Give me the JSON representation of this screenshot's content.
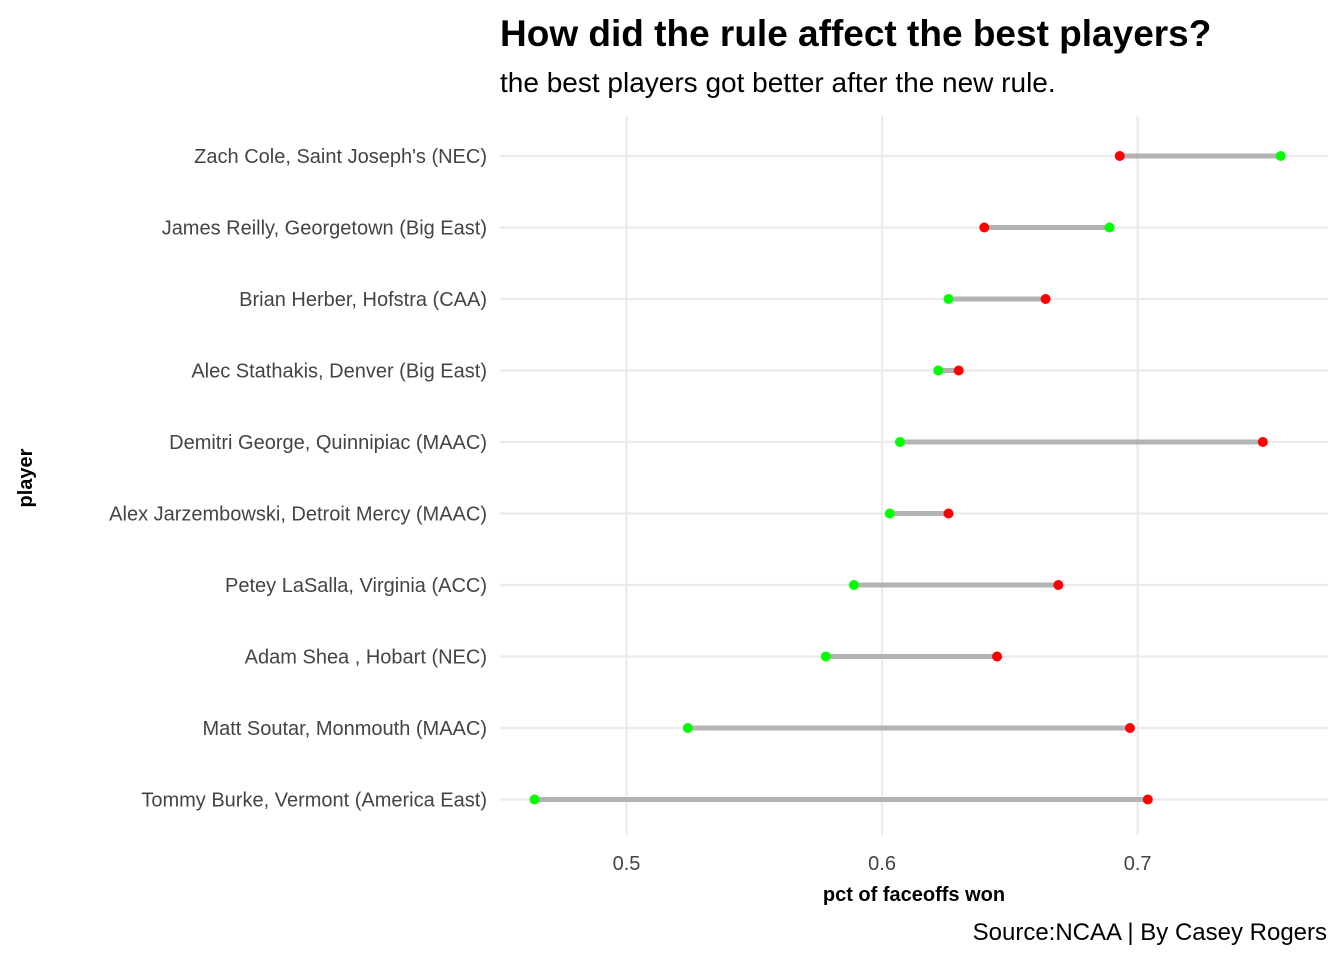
{
  "chart_data": {
    "type": "dumbbell",
    "title": "How did the rule affect the best players?",
    "subtitle": "the best players got better after the new rule.",
    "xlabel": "pct of faceoffs won",
    "ylabel": "player",
    "caption": "Source:NCAA | By Casey Rogers",
    "xlim": [
      0.4505,
      0.7745
    ],
    "xticks": [
      0.5,
      0.6,
      0.7
    ],
    "xtick_labels": [
      "0.5",
      "0.6",
      "0.7"
    ],
    "grid": true,
    "legend": "none",
    "series_colors": {
      "green": "#00ff00",
      "red": "#ff0000"
    },
    "categories": [
      "Zach Cole, Saint Joseph's (NEC)",
      "James Reilly, Georgetown (Big East)",
      "Brian Herber, Hofstra (CAA)",
      "Alec Stathakis, Denver (Big East)",
      "Demitri George, Quinnipiac (MAAC)",
      "Alex Jarzembowski, Detroit Mercy (MAAC)",
      "Petey LaSalla, Virginia (ACC)",
      "Adam Shea , Hobart (NEC)",
      "Matt Soutar, Monmouth (MAAC)",
      "Tommy Burke, Vermont (America East)"
    ],
    "series": [
      {
        "color": "green",
        "values": [
          0.756,
          0.689,
          0.626,
          0.622,
          0.607,
          0.603,
          0.589,
          0.578,
          0.524,
          0.464
        ]
      },
      {
        "color": "red",
        "values": [
          0.693,
          0.64,
          0.664,
          0.63,
          0.749,
          0.626,
          0.669,
          0.645,
          0.697,
          0.704
        ]
      }
    ]
  }
}
